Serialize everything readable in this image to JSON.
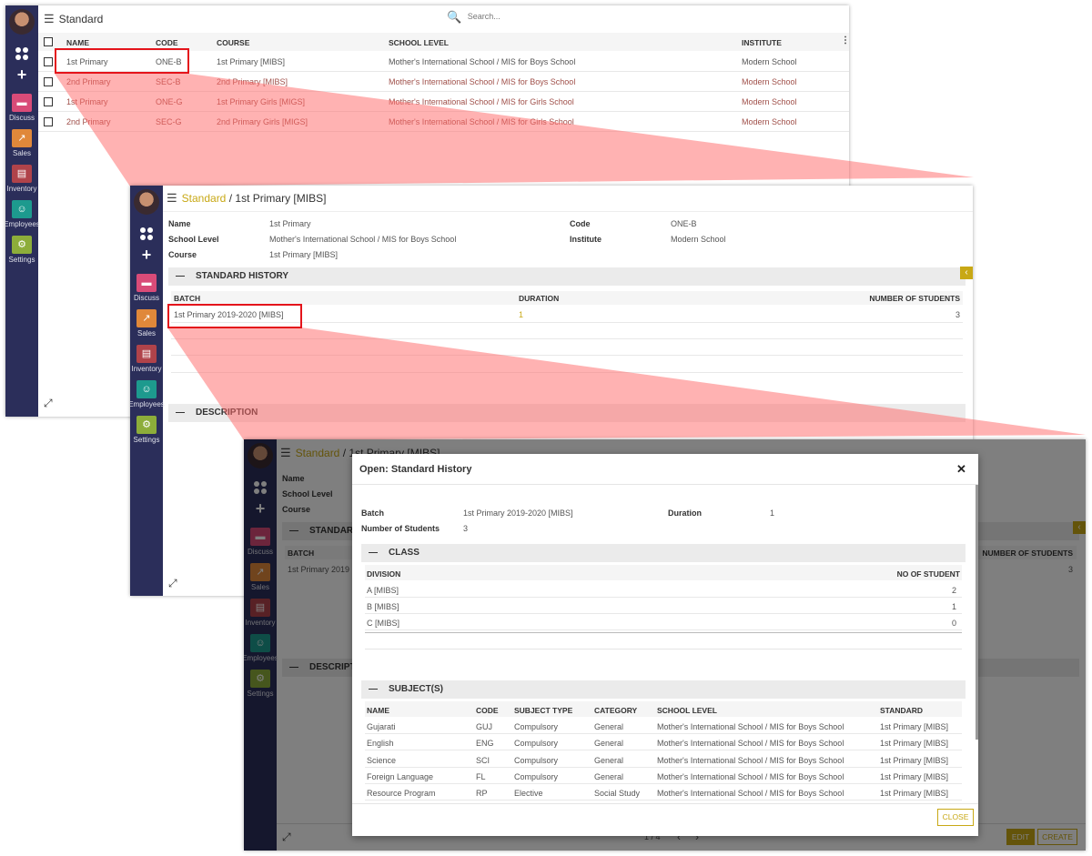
{
  "sidebar": {
    "apps": [
      {
        "label": "Discuss",
        "icon": "chat-bubble-icon",
        "color": "#d94b78"
      },
      {
        "label": "Sales",
        "icon": "chart-icon",
        "color": "#e0883a"
      },
      {
        "label": "Inventory",
        "icon": "box-icon",
        "color": "#b0434a"
      },
      {
        "label": "Employees",
        "icon": "people-icon",
        "color": "#1d9a8e"
      },
      {
        "label": "Settings",
        "icon": "gear-icon",
        "color": "#8dad3a"
      }
    ]
  },
  "colors": {
    "accent": "#c8a815",
    "sidebar": "#2b2e5a",
    "highlight": "#e4141b"
  },
  "list": {
    "title": "Standard",
    "search_placeholder": "Search...",
    "columns": [
      "NAME",
      "CODE",
      "COURSE",
      "SCHOOL LEVEL",
      "INSTITUTE"
    ],
    "rows": [
      [
        "1st Primary",
        "ONE-B",
        "1st Primary [MIBS]",
        "Mother's International School / MIS for Boys School",
        "Modern School"
      ],
      [
        "2nd Primary",
        "SEC-B",
        "2nd Primary [MIBS]",
        "Mother's International School / MIS for Boys School",
        "Modern School"
      ],
      [
        "1st Primary",
        "ONE-G",
        "1st Primary Girls [MIGS]",
        "Mother's International School / MIS for Girls School",
        "Modern School"
      ],
      [
        "2nd Primary",
        "SEC-G",
        "2nd Primary Girls [MIGS]",
        "Mother's International School / MIS for Girls School",
        "Modern School"
      ]
    ]
  },
  "form": {
    "breadcrumb_parent": "Standard",
    "breadcrumb_sep": "/",
    "breadcrumb_current": "1st Primary [MIBS]",
    "name_label": "Name",
    "name": "1st Primary",
    "school_level_label": "School Level",
    "school_level": "Mother's International School / MIS for Boys School",
    "course_label": "Course",
    "course": "1st Primary [MIBS]",
    "code_label": "Code",
    "code": "ONE-B",
    "institute_label": "Institute",
    "institute": "Modern School",
    "history_section": "STANDARD HISTORY",
    "history_columns": [
      "BATCH",
      "DURATION",
      "NUMBER OF STUDENTS"
    ],
    "history_rows": [
      [
        "1st Primary 2019-2020 [MIBS]",
        "1",
        "3"
      ]
    ],
    "description_section": "DESCRIPTION",
    "bg_section_trunc": "STANDARD",
    "bg_desc_trunc": "DESCRIPTIO",
    "bg_batch_trunc": "1st Primary 2019",
    "pager": "1 / 4",
    "edit": "EDIT",
    "create": "CREATE"
  },
  "modal": {
    "title": "Open: Standard History",
    "batch_label": "Batch",
    "batch": "1st Primary 2019-2020 [MIBS]",
    "duration_label": "Duration",
    "duration": "1",
    "students_label": "Number of Students",
    "students": "3",
    "class_section": "CLASS",
    "class_columns": [
      "DIVISION",
      "NO OF STUDENT"
    ],
    "class_rows": [
      [
        "A [MIBS]",
        "2"
      ],
      [
        "B [MIBS]",
        "1"
      ],
      [
        "C [MIBS]",
        "0"
      ]
    ],
    "subjects_section": "SUBJECT(S)",
    "subject_columns": [
      "NAME",
      "CODE",
      "SUBJECT TYPE",
      "CATEGORY",
      "SCHOOL LEVEL",
      "STANDARD"
    ],
    "subject_rows": [
      [
        "Gujarati",
        "GUJ",
        "Compulsory",
        "General",
        "Mother's International School / MIS for Boys School",
        "1st Primary [MIBS]"
      ],
      [
        "English",
        "ENG",
        "Compulsory",
        "General",
        "Mother's International School / MIS for Boys School",
        "1st Primary [MIBS]"
      ],
      [
        "Science",
        "SCI",
        "Compulsory",
        "General",
        "Mother's International School / MIS for Boys School",
        "1st Primary [MIBS]"
      ],
      [
        "Foreign Language",
        "FL",
        "Compulsory",
        "General",
        "Mother's International School / MIS for Boys School",
        "1st Primary [MIBS]"
      ],
      [
        "Resource Program",
        "RP",
        "Elective",
        "Social Study",
        "Mother's International School / MIS for Boys School",
        "1st Primary [MIBS]"
      ]
    ],
    "close": "CLOSE"
  }
}
